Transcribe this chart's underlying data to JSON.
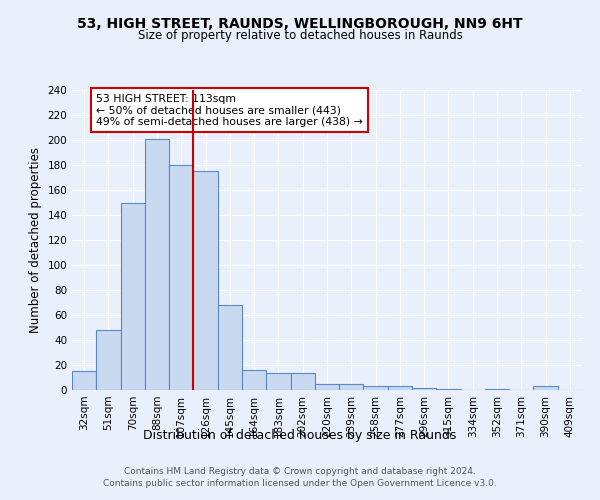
{
  "title1": "53, HIGH STREET, RAUNDS, WELLINGBOROUGH, NN9 6HT",
  "title2": "Size of property relative to detached houses in Raunds",
  "xlabel": "Distribution of detached houses by size in Raunds",
  "ylabel": "Number of detached properties",
  "bar_color": "#c9d9f0",
  "bar_edge_color": "#5a8ac6",
  "categories": [
    "32sqm",
    "51sqm",
    "70sqm",
    "88sqm",
    "107sqm",
    "126sqm",
    "145sqm",
    "164sqm",
    "183sqm",
    "202sqm",
    "220sqm",
    "239sqm",
    "258sqm",
    "277sqm",
    "296sqm",
    "315sqm",
    "334sqm",
    "352sqm",
    "371sqm",
    "390sqm",
    "409sqm"
  ],
  "values": [
    15,
    48,
    150,
    201,
    180,
    175,
    68,
    16,
    14,
    14,
    5,
    5,
    3,
    3,
    2,
    1,
    0,
    1,
    0,
    3,
    0
  ],
  "vline_x": 4.5,
  "vline_color": "#cc0000",
  "annotation_text": "53 HIGH STREET: 113sqm\n← 50% of detached houses are smaller (443)\n49% of semi-detached houses are larger (438) →",
  "annotation_box_color": "#ffffff",
  "annotation_box_edge": "#cc0000",
  "ylim": [
    0,
    240
  ],
  "yticks": [
    0,
    20,
    40,
    60,
    80,
    100,
    120,
    140,
    160,
    180,
    200,
    220,
    240
  ],
  "footer1": "Contains HM Land Registry data © Crown copyright and database right 2024.",
  "footer2": "Contains public sector information licensed under the Open Government Licence v3.0.",
  "bg_color": "#eaf0fb",
  "grid_color": "#ffffff"
}
